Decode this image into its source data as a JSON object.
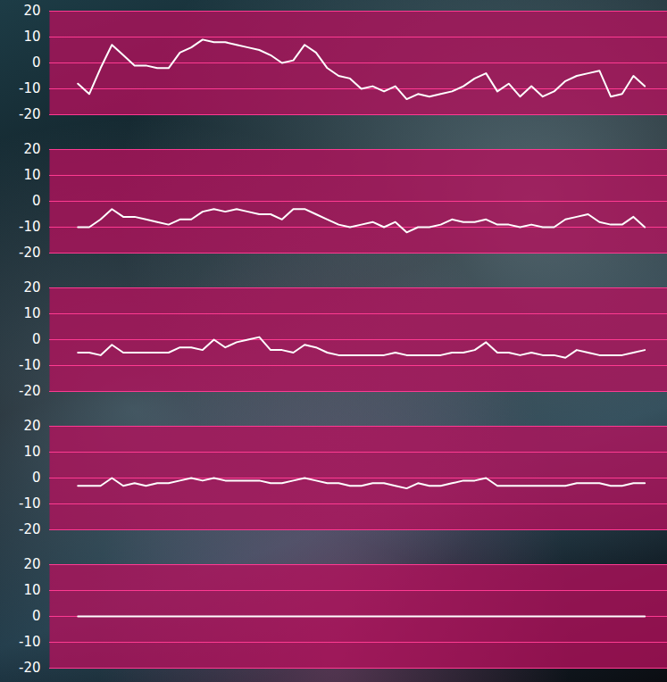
{
  "chart_data": [
    {
      "type": "line",
      "color": "#ffffff",
      "grid": true,
      "tick_labels": "y",
      "xlim": [
        -5,
        104
      ],
      "ylim": [
        -20,
        20
      ],
      "yticks": [
        -20,
        -10,
        0,
        10,
        20
      ],
      "x": [
        0,
        2,
        4,
        6,
        8,
        10,
        12,
        14,
        16,
        18,
        20,
        22,
        24,
        26,
        28,
        30,
        32,
        34,
        36,
        38,
        40,
        42,
        44,
        46,
        48,
        50,
        52,
        54,
        56,
        58,
        60,
        62,
        64,
        66,
        68,
        70,
        72,
        74,
        76,
        78,
        80,
        82,
        84,
        86,
        88,
        90,
        92,
        94,
        96,
        98,
        100
      ],
      "values": [
        -8,
        -12,
        -2,
        7,
        3,
        -1,
        -1,
        -2,
        -2,
        4,
        6,
        9,
        8,
        8,
        7,
        6,
        5,
        3,
        0,
        1,
        7,
        4,
        -2,
        -5,
        -6,
        -10,
        -9,
        -11,
        -9,
        -14,
        -12,
        -13,
        -12,
        -11,
        -9,
        -6,
        -4,
        -11,
        -8,
        -13,
        -9,
        -13,
        -11,
        -7,
        -5,
        -4,
        -3,
        -13,
        -12,
        -5,
        -9
      ]
    },
    {
      "type": "line",
      "color": "#ffffff",
      "grid": true,
      "tick_labels": "y",
      "xlim": [
        -5,
        104
      ],
      "ylim": [
        -20,
        20
      ],
      "yticks": [
        -20,
        -10,
        0,
        10,
        20
      ],
      "x": [
        0,
        2,
        4,
        6,
        8,
        10,
        12,
        14,
        16,
        18,
        20,
        22,
        24,
        26,
        28,
        30,
        32,
        34,
        36,
        38,
        40,
        42,
        44,
        46,
        48,
        50,
        52,
        54,
        56,
        58,
        60,
        62,
        64,
        66,
        68,
        70,
        72,
        74,
        76,
        78,
        80,
        82,
        84,
        86,
        88,
        90,
        92,
        94,
        96,
        98,
        100
      ],
      "values": [
        -10,
        -10,
        -7,
        -3,
        -6,
        -6,
        -7,
        -8,
        -9,
        -7,
        -7,
        -4,
        -3,
        -4,
        -3,
        -4,
        -5,
        -5,
        -7,
        -3,
        -3,
        -5,
        -7,
        -9,
        -10,
        -9,
        -8,
        -10,
        -8,
        -12,
        -10,
        -10,
        -9,
        -7,
        -8,
        -8,
        -7,
        -9,
        -9,
        -10,
        -9,
        -10,
        -10,
        -7,
        -6,
        -5,
        -8,
        -9,
        -9,
        -6,
        -10
      ]
    },
    {
      "type": "line",
      "color": "#ffffff",
      "grid": true,
      "tick_labels": "y",
      "xlim": [
        -5,
        104
      ],
      "ylim": [
        -20,
        20
      ],
      "yticks": [
        -20,
        -10,
        0,
        10,
        20
      ],
      "x": [
        0,
        2,
        4,
        6,
        8,
        10,
        12,
        14,
        16,
        18,
        20,
        22,
        24,
        26,
        28,
        30,
        32,
        34,
        36,
        38,
        40,
        42,
        44,
        46,
        48,
        50,
        52,
        54,
        56,
        58,
        60,
        62,
        64,
        66,
        68,
        70,
        72,
        74,
        76,
        78,
        80,
        82,
        84,
        86,
        88,
        90,
        92,
        94,
        96,
        98,
        100
      ],
      "values": [
        -5,
        -5,
        -6,
        -2,
        -5,
        -5,
        -5,
        -5,
        -5,
        -3,
        -3,
        -4,
        0,
        -3,
        -1,
        0,
        1,
        -4,
        -4,
        -5,
        -2,
        -3,
        -5,
        -6,
        -6,
        -6,
        -6,
        -6,
        -5,
        -6,
        -6,
        -6,
        -6,
        -5,
        -5,
        -4,
        -1,
        -5,
        -5,
        -6,
        -5,
        -6,
        -6,
        -7,
        -4,
        -5,
        -6,
        -6,
        -6,
        -5,
        -4
      ]
    },
    {
      "type": "line",
      "color": "#ffffff",
      "grid": true,
      "tick_labels": "y",
      "xlim": [
        -5,
        104
      ],
      "ylim": [
        -20,
        20
      ],
      "yticks": [
        -20,
        -10,
        0,
        10,
        20
      ],
      "x": [
        0,
        2,
        4,
        6,
        8,
        10,
        12,
        14,
        16,
        18,
        20,
        22,
        24,
        26,
        28,
        30,
        32,
        34,
        36,
        38,
        40,
        42,
        44,
        46,
        48,
        50,
        52,
        54,
        56,
        58,
        60,
        62,
        64,
        66,
        68,
        70,
        72,
        74,
        76,
        78,
        80,
        82,
        84,
        86,
        88,
        90,
        92,
        94,
        96,
        98,
        100
      ],
      "values": [
        -3,
        -3,
        -3,
        0,
        -3,
        -2,
        -3,
        -2,
        -2,
        -1,
        0,
        -1,
        0,
        -1,
        -1,
        -1,
        -1,
        -2,
        -2,
        -1,
        0,
        -1,
        -2,
        -2,
        -3,
        -3,
        -2,
        -2,
        -3,
        -4,
        -2,
        -3,
        -3,
        -2,
        -1,
        -1,
        0,
        -3,
        -3,
        -3,
        -3,
        -3,
        -3,
        -3,
        -2,
        -2,
        -2,
        -3,
        -3,
        -2,
        -2
      ]
    },
    {
      "type": "line",
      "color": "#ffffff",
      "grid": true,
      "tick_labels": "y",
      "xlim": [
        -5,
        104
      ],
      "ylim": [
        -20,
        20
      ],
      "yticks": [
        -20,
        -10,
        0,
        10,
        20
      ],
      "x": [
        0,
        2,
        4,
        6,
        8,
        10,
        12,
        14,
        16,
        18,
        20,
        22,
        24,
        26,
        28,
        30,
        32,
        34,
        36,
        38,
        40,
        42,
        44,
        46,
        48,
        50,
        52,
        54,
        56,
        58,
        60,
        62,
        64,
        66,
        68,
        70,
        72,
        74,
        76,
        78,
        80,
        82,
        84,
        86,
        88,
        90,
        92,
        94,
        96,
        98,
        100
      ],
      "values": [
        0,
        0,
        0,
        0,
        0,
        0,
        0,
        0,
        0,
        0,
        0,
        0,
        0,
        0,
        0,
        0,
        0,
        0,
        0,
        0,
        0,
        0,
        0,
        0,
        0,
        0,
        0,
        0,
        0,
        0,
        0,
        0,
        0,
        0,
        0,
        0,
        0,
        0,
        0,
        0,
        0,
        0,
        0,
        0,
        0,
        0,
        0,
        0,
        0,
        0,
        0
      ]
    }
  ]
}
